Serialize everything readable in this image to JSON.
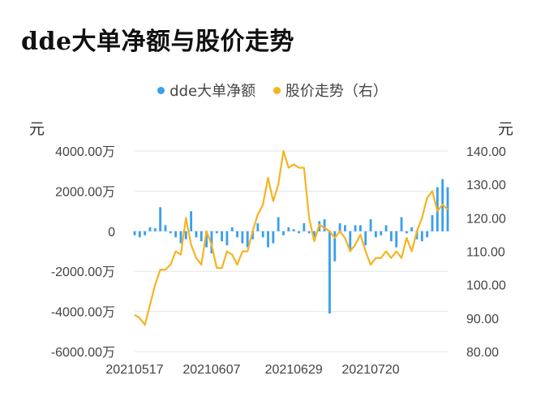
{
  "title": "dde大单净额与股价走势",
  "legend": {
    "bar_label": "dde大单净额",
    "line_label": "股价走势（右）"
  },
  "units": {
    "left": "元",
    "right": "元"
  },
  "colors": {
    "bar": "#3AA0EC",
    "line": "#F6B322",
    "grid": "#E6E6E6"
  },
  "chart_data": {
    "type": "bar+line",
    "title": "dde大单净额与股价走势",
    "y_left": {
      "unit": "元",
      "ylim": [
        -6000,
        4000
      ],
      "ticks": [
        -6000,
        -4000,
        -2000,
        0,
        2000,
        4000
      ],
      "tick_labels": [
        "-6000.00万",
        "-4000.00万",
        "-2000.00万",
        "0",
        "2000.00万",
        "4000.00万"
      ]
    },
    "y_right": {
      "unit": "元",
      "ylim": [
        80,
        140
      ],
      "ticks": [
        80,
        90,
        100,
        110,
        120,
        130,
        140
      ],
      "tick_labels": [
        "80.00",
        "90.00",
        "100.00",
        "110.00",
        "120.00",
        "130.00",
        "140.00"
      ]
    },
    "x_tick_labels": [
      {
        "index": 0,
        "label": "20210517"
      },
      {
        "index": 15,
        "label": "20210607"
      },
      {
        "index": 31,
        "label": "20210629"
      },
      {
        "index": 46,
        "label": "20210720"
      }
    ],
    "n_points": 62,
    "grid": true,
    "legend_position": "top",
    "series": [
      {
        "name": "dde大单净额",
        "type": "bar",
        "axis": "left",
        "values": [
          -200,
          -300,
          -200,
          200,
          150,
          1200,
          300,
          -100,
          -300,
          -600,
          -400,
          1000,
          -300,
          -500,
          -800,
          -1100,
          -100,
          -500,
          -700,
          200,
          -300,
          -600,
          -800,
          -400,
          400,
          -300,
          -800,
          -600,
          700,
          -200,
          200,
          100,
          -100,
          400,
          -100,
          -300,
          500,
          600,
          -4100,
          -1500,
          400,
          300,
          -1000,
          300,
          300,
          -700,
          600,
          -300,
          -200,
          300,
          -500,
          -800,
          700,
          -100,
          200,
          -400,
          -500,
          -300,
          800,
          2200,
          2600,
          2200
        ]
      },
      {
        "name": "股价走势（右）",
        "type": "line",
        "axis": "right",
        "values": [
          91,
          90,
          88,
          94,
          100,
          104.5,
          104.5,
          106,
          110,
          109,
          120,
          112,
          108,
          106,
          116,
          112,
          105,
          105,
          110,
          109,
          106,
          110,
          110,
          116,
          121,
          124,
          132,
          125,
          130,
          140,
          135,
          136,
          135,
          135,
          120,
          113,
          118,
          117,
          116,
          114,
          116,
          114,
          110,
          112,
          115,
          110,
          106,
          108,
          108,
          110,
          108,
          110,
          108,
          114,
          110,
          116,
          120,
          126,
          128,
          122,
          124,
          122.5
        ]
      }
    ]
  }
}
